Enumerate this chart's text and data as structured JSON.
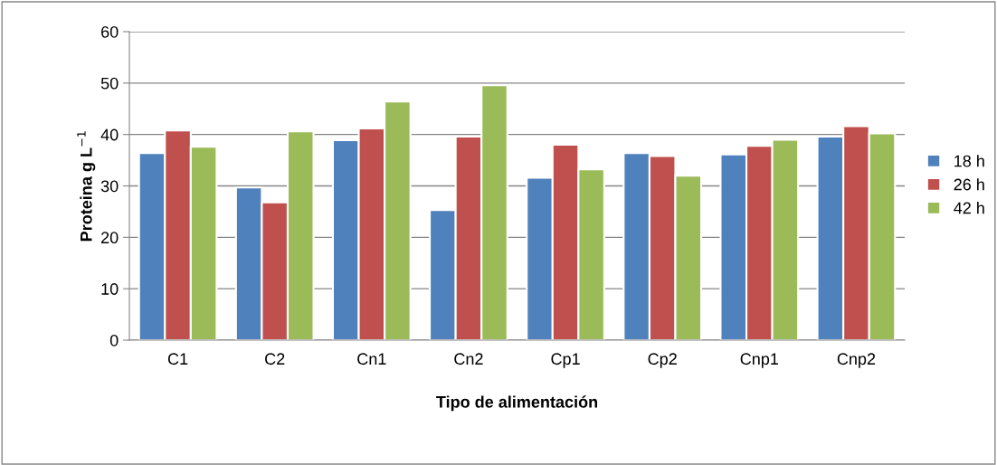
{
  "chart_data": {
    "type": "bar",
    "xlabel": "Tipo de alimentación",
    "ylabel": "Proteina g L$^{−1}$",
    "categories": [
      "C1",
      "C2",
      "Cn1",
      "Cn2",
      "Cp1",
      "Cp2",
      "Cnp1",
      "Cnp2"
    ],
    "series": [
      {
        "name": "18 h",
        "color": "#4f81bd",
        "values": [
          36.4,
          29.7,
          38.9,
          25.3,
          31.6,
          36.4,
          36.1,
          39.6
        ]
      },
      {
        "name": "26 h",
        "color": "#c0504d",
        "values": [
          40.8,
          26.8,
          41.2,
          39.6,
          38.0,
          35.8,
          37.8,
          41.6
        ]
      },
      {
        "name": "42 h",
        "color": "#9bbb59",
        "values": [
          37.6,
          40.6,
          46.4,
          49.6,
          33.2,
          32.0,
          39.0,
          40.2
        ]
      }
    ],
    "ylim": [
      0,
      60
    ],
    "yticks": [
      0,
      10,
      20,
      30,
      40,
      50,
      60
    ],
    "grid": "y",
    "legend": "right"
  }
}
